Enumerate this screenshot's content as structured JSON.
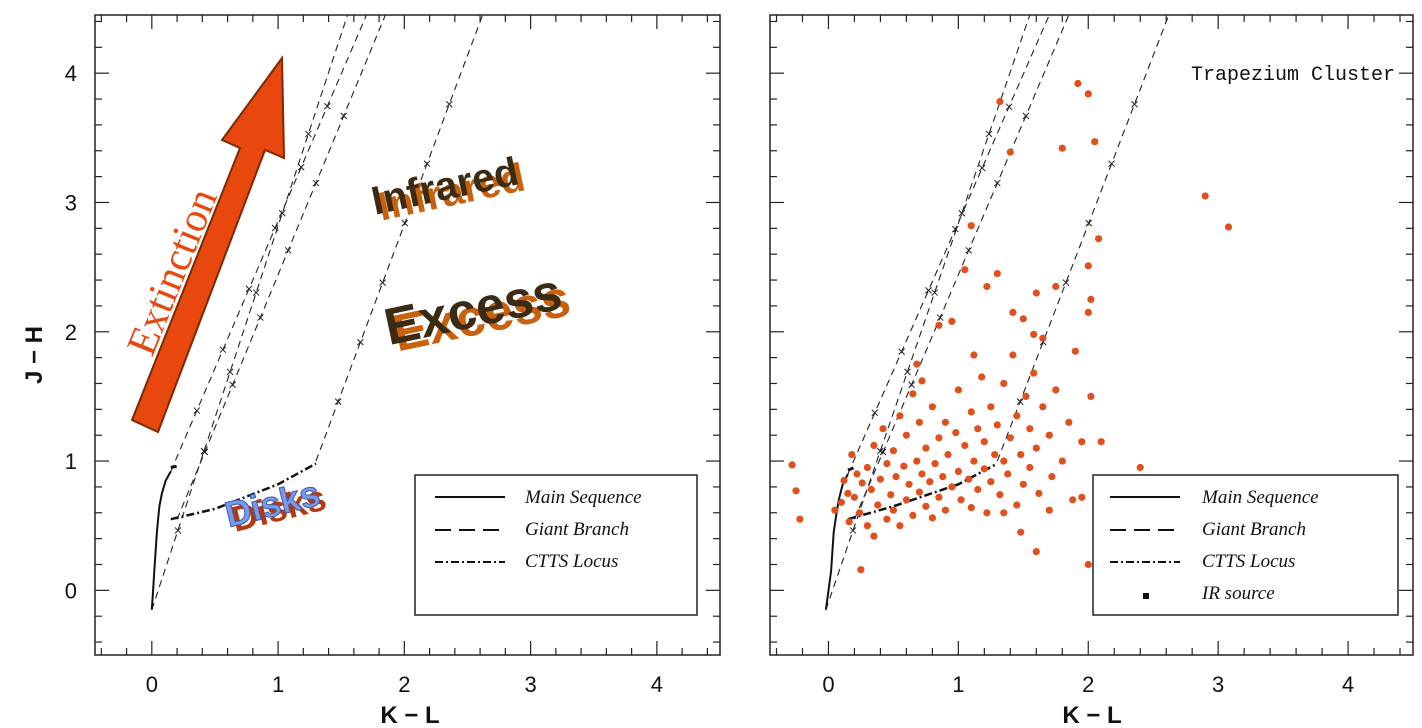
{
  "chart_data": [
    {
      "type": "scatter",
      "title": "",
      "xlabel": "K − L",
      "ylabel": "J − H",
      "xlim": [
        -0.45,
        4.5
      ],
      "ylim": [
        -0.5,
        4.45
      ],
      "xticks": [
        0,
        1,
        2,
        3,
        4
      ],
      "yticks": [
        0,
        1,
        2,
        3,
        4
      ],
      "xtick_labels": [
        "0",
        "1",
        "2",
        "3",
        "4"
      ],
      "ytick_labels": [
        "0",
        "1",
        "2",
        "3",
        "4"
      ],
      "grid": false,
      "legend": {
        "placement": "bottom-right",
        "entries": [
          {
            "label": "Main Sequence",
            "style": "solid"
          },
          {
            "label": "Giant Branch",
            "style": "dashed"
          },
          {
            "label": "CTTS Locus",
            "style": "dashdot"
          }
        ]
      },
      "annotations": [
        "Extinction",
        "Infrared",
        "Excess",
        "Disks"
      ],
      "curves": {
        "main_sequence": [
          [
            0.0,
            -0.15
          ],
          [
            0.01,
            0.0
          ],
          [
            0.02,
            0.15
          ],
          [
            0.03,
            0.3
          ],
          [
            0.04,
            0.45
          ],
          [
            0.05,
            0.55
          ],
          [
            0.06,
            0.65
          ],
          [
            0.08,
            0.75
          ],
          [
            0.11,
            0.85
          ],
          [
            0.15,
            0.92
          ]
        ],
        "giant_branch": [
          [
            0.15,
            0.95
          ],
          [
            0.2,
            0.96
          ]
        ],
        "ctts_locus": [
          [
            0.15,
            0.55
          ],
          [
            0.5,
            0.63
          ],
          [
            1.0,
            0.82
          ],
          [
            1.3,
            0.98
          ]
        ],
        "reddening_lines": [
          {
            "x": [
              0.0,
              1.55
            ],
            "y": [
              -0.15,
              4.45
            ]
          },
          {
            "x": [
              0.15,
              1.7
            ],
            "y": [
              0.92,
              4.45
            ]
          },
          {
            "x": [
              0.2,
              1.85
            ],
            "y": [
              0.55,
              4.45
            ]
          },
          {
            "x": [
              1.3,
              2.62
            ],
            "y": [
              1.0,
              4.45
            ]
          }
        ]
      }
    },
    {
      "type": "scatter",
      "title": "Trapezium Cluster",
      "xlabel": "K − L",
      "ylabel": "",
      "xlim": [
        -0.45,
        4.5
      ],
      "ylim": [
        -0.5,
        4.45
      ],
      "xticks": [
        0,
        1,
        2,
        3,
        4
      ],
      "yticks": [
        0,
        1,
        2,
        3,
        4
      ],
      "xtick_labels": [
        "0",
        "1",
        "2",
        "3",
        "4"
      ],
      "grid": false,
      "legend": {
        "placement": "bottom-right",
        "entries": [
          {
            "label": "Main Sequence",
            "style": "solid"
          },
          {
            "label": "Giant Branch",
            "style": "dashed"
          },
          {
            "label": "CTTS Locus",
            "style": "dashdot"
          },
          {
            "label": "IR source",
            "style": "marker"
          }
        ]
      },
      "point_color": "#e0501c",
      "series": [
        {
          "points": [
            [
              -0.28,
              0.97
            ],
            [
              -0.25,
              0.77
            ],
            [
              -0.22,
              0.55
            ],
            [
              0.05,
              0.62
            ],
            [
              0.1,
              0.68
            ],
            [
              0.12,
              0.85
            ],
            [
              0.15,
              0.75
            ],
            [
              0.16,
              0.53
            ],
            [
              0.18,
              1.05
            ],
            [
              0.2,
              0.72
            ],
            [
              0.22,
              0.9
            ],
            [
              0.24,
              0.6
            ],
            [
              0.25,
              0.16
            ],
            [
              0.26,
              0.83
            ],
            [
              0.3,
              0.5
            ],
            [
              0.3,
              0.95
            ],
            [
              0.33,
              0.78
            ],
            [
              0.35,
              0.42
            ],
            [
              0.35,
              1.12
            ],
            [
              0.38,
              0.66
            ],
            [
              0.4,
              0.86
            ],
            [
              0.42,
              1.25
            ],
            [
              0.45,
              0.55
            ],
            [
              0.45,
              0.98
            ],
            [
              0.48,
              0.74
            ],
            [
              0.5,
              1.08
            ],
            [
              0.5,
              0.62
            ],
            [
              0.52,
              0.88
            ],
            [
              0.55,
              1.35
            ],
            [
              0.55,
              0.5
            ],
            [
              0.58,
              0.96
            ],
            [
              0.6,
              0.7
            ],
            [
              0.6,
              1.2
            ],
            [
              0.62,
              0.82
            ],
            [
              0.65,
              1.52
            ],
            [
              0.65,
              0.58
            ],
            [
              0.68,
              1.0
            ],
            [
              0.7,
              0.76
            ],
            [
              0.7,
              1.3
            ],
            [
              0.72,
              0.9
            ],
            [
              0.75,
              1.1
            ],
            [
              0.75,
              0.65
            ],
            [
              0.78,
              0.84
            ],
            [
              0.8,
              1.42
            ],
            [
              0.8,
              0.56
            ],
            [
              0.82,
              0.98
            ],
            [
              0.85,
              1.18
            ],
            [
              0.85,
              0.72
            ],
            [
              0.88,
              0.88
            ],
            [
              0.9,
              1.3
            ],
            [
              0.9,
              0.62
            ],
            [
              0.92,
              1.05
            ],
            [
              0.95,
              2.08
            ],
            [
              0.95,
              0.8
            ],
            [
              0.98,
              1.22
            ],
            [
              1.0,
              0.92
            ],
            [
              1.0,
              1.55
            ],
            [
              1.02,
              0.7
            ],
            [
              1.05,
              1.12
            ],
            [
              1.05,
              2.48
            ],
            [
              1.08,
              0.86
            ],
            [
              1.1,
              1.38
            ],
            [
              1.1,
              0.64
            ],
            [
              1.12,
              1.0
            ],
            [
              1.15,
              1.25
            ],
            [
              1.15,
              0.78
            ],
            [
              1.18,
              1.65
            ],
            [
              1.2,
              0.94
            ],
            [
              1.2,
              1.15
            ],
            [
              1.22,
              0.6
            ],
            [
              1.25,
              1.42
            ],
            [
              1.25,
              0.84
            ],
            [
              1.28,
              1.05
            ],
            [
              1.3,
              2.45
            ],
            [
              1.3,
              1.28
            ],
            [
              1.32,
              0.74
            ],
            [
              1.35,
              1.0
            ],
            [
              1.35,
              1.6
            ],
            [
              1.38,
              0.9
            ],
            [
              1.4,
              1.18
            ],
            [
              1.42,
              1.82
            ],
            [
              1.45,
              0.66
            ],
            [
              1.45,
              1.35
            ],
            [
              1.48,
              1.05
            ],
            [
              1.5,
              2.1
            ],
            [
              1.5,
              0.82
            ],
            [
              1.52,
              1.5
            ],
            [
              1.55,
              1.25
            ],
            [
              1.55,
              0.95
            ],
            [
              1.58,
              1.68
            ],
            [
              1.6,
              1.1
            ],
            [
              1.62,
              0.75
            ],
            [
              1.65,
              1.42
            ],
            [
              1.65,
              1.95
            ],
            [
              1.7,
              1.2
            ],
            [
              1.72,
              0.88
            ],
            [
              1.75,
              2.35
            ],
            [
              1.75,
              1.55
            ],
            [
              1.8,
              1.0
            ],
            [
              1.85,
              1.3
            ],
            [
              1.88,
              0.7
            ],
            [
              1.9,
              1.85
            ],
            [
              1.95,
              1.15
            ],
            [
              2.0,
              2.15
            ],
            [
              2.02,
              1.5
            ],
            [
              2.08,
              2.72
            ],
            [
              2.1,
              1.15
            ],
            [
              1.32,
              3.78
            ],
            [
              1.4,
              3.39
            ],
            [
              1.8,
              3.42
            ],
            [
              1.92,
              3.92
            ],
            [
              2.0,
              3.84
            ],
            [
              2.05,
              3.47
            ],
            [
              2.0,
              2.51
            ],
            [
              2.02,
              2.25
            ],
            [
              2.4,
              0.95
            ],
            [
              2.42,
              0.4
            ],
            [
              2.9,
              3.05
            ],
            [
              3.08,
              2.81
            ],
            [
              1.1,
              2.82
            ],
            [
              1.6,
              2.3
            ],
            [
              1.12,
              1.82
            ],
            [
              0.85,
              2.05
            ],
            [
              1.22,
              2.35
            ],
            [
              1.42,
              2.15
            ],
            [
              1.58,
              1.98
            ],
            [
              1.48,
              0.45
            ],
            [
              1.6,
              0.3
            ],
            [
              2.0,
              0.2
            ],
            [
              0.68,
              1.75
            ],
            [
              0.72,
              1.62
            ],
            [
              1.35,
              0.6
            ],
            [
              1.7,
              0.62
            ],
            [
              1.95,
              0.72
            ]
          ]
        }
      ],
      "curves": {
        "main_sequence": [
          [
            -0.02,
            -0.15
          ],
          [
            0.0,
            0.0
          ],
          [
            0.02,
            0.15
          ],
          [
            0.03,
            0.3
          ],
          [
            0.04,
            0.45
          ],
          [
            0.06,
            0.58
          ],
          [
            0.08,
            0.7
          ],
          [
            0.11,
            0.82
          ],
          [
            0.15,
            0.9
          ]
        ],
        "giant_branch": [
          [
            0.15,
            0.93
          ],
          [
            0.2,
            0.95
          ]
        ],
        "ctts_locus": [
          [
            0.15,
            0.55
          ],
          [
            0.5,
            0.65
          ],
          [
            1.0,
            0.82
          ],
          [
            1.3,
            0.98
          ]
        ],
        "reddening_lines": [
          {
            "x": [
              -0.02,
              1.55
            ],
            "y": [
              -0.15,
              4.45
            ]
          },
          {
            "x": [
              0.15,
              1.7
            ],
            "y": [
              0.9,
              4.45
            ]
          },
          {
            "x": [
              0.2,
              1.85
            ],
            "y": [
              0.55,
              4.45
            ]
          },
          {
            "x": [
              1.3,
              2.62
            ],
            "y": [
              1.0,
              4.45
            ]
          }
        ]
      }
    }
  ]
}
